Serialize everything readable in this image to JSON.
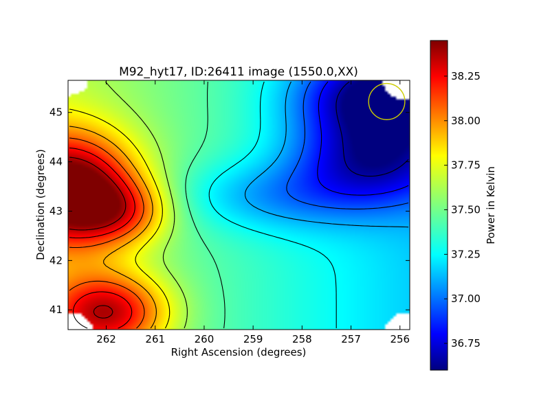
{
  "chart_data": {
    "type": "heatmap",
    "title": "M92_hyt17, ID:26411 image (1550.0,XX)",
    "xlabel": "Right Ascension (degrees)",
    "ylabel": "Declination (degrees)",
    "xlim": [
      262.78,
      255.8
    ],
    "ylim": [
      40.6,
      45.65
    ],
    "x_ticks": [
      262,
      261,
      260,
      259,
      258,
      257,
      256
    ],
    "y_ticks": [
      41,
      42,
      43,
      44,
      45
    ],
    "colormap": "jet",
    "colorbar": {
      "label": "Power in Kelvin",
      "range": [
        36.6,
        38.45
      ],
      "ticks": [
        "36.75",
        "37.00",
        "37.25",
        "37.50",
        "37.75",
        "38.00",
        "38.25"
      ]
    },
    "colors": {
      "marker_circle": "#cccc00",
      "contour": "#000000",
      "colormap_stops": [
        "#00007f",
        "#0000ff",
        "#007fff",
        "#00ffff",
        "#7fff7f",
        "#ffff00",
        "#ff7f00",
        "#ff0000",
        "#7f0000"
      ]
    },
    "marker": {
      "shape": "circle",
      "ra": 256.27,
      "dec": 45.22,
      "radius_deg": 0.37
    },
    "features": [
      {
        "name": "maximum",
        "ra": 262.75,
        "dec": 43.42,
        "value": 38.44,
        "sigma_ra": 0.95,
        "sigma_dec": 0.8
      },
      {
        "name": "hot_tail",
        "ra": 261.7,
        "dec": 43.0,
        "value": 37.8,
        "sigma_ra": 0.7,
        "sigma_dec": 0.45
      },
      {
        "name": "lower_left_hot",
        "ra": 262.0,
        "dec": 40.95,
        "value": 38.2,
        "sigma_ra": 0.85,
        "sigma_dec": 0.55
      },
      {
        "name": "minimum",
        "ra": 256.3,
        "dec": 45.3,
        "value": 36.6,
        "sigma_ra": 1.2,
        "sigma_dec": 0.65
      },
      {
        "name": "blue_band",
        "ra": 256.6,
        "dec": 44.0,
        "value": 36.9,
        "sigma_ra": 1.1,
        "sigma_dec": 0.6
      },
      {
        "name": "central_cyan",
        "ra": 258.5,
        "dec": 43.3,
        "value": 37.15,
        "sigma_ra": 1.5,
        "sigma_dec": 0.5
      }
    ],
    "background_value": 37.42,
    "contour_levels": [
      36.67,
      36.85,
      37.0,
      37.15,
      37.3,
      37.45,
      37.6,
      37.75,
      37.9,
      38.05,
      38.2,
      38.35
    ]
  }
}
